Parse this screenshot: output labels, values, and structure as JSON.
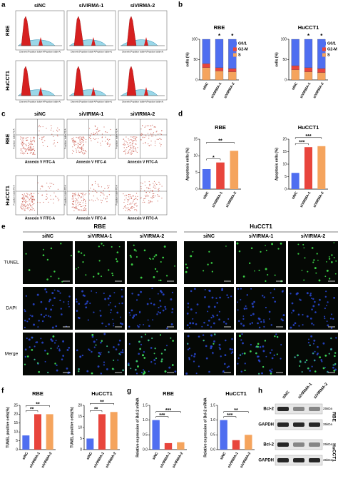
{
  "panel_labels": [
    "a",
    "b",
    "c",
    "d",
    "e",
    "f",
    "g",
    "h"
  ],
  "flow_cycle": {
    "columns": [
      "siNC",
      "siVIRMA-1",
      "siVIRMA-2"
    ],
    "rows": [
      "RBE",
      "HuCCT1"
    ],
    "x_label": "Channels (Propidium Iodide-A/Propidium Iodide-A)"
  },
  "flow_apoptosis": {
    "columns": [
      "siNC",
      "siVIRMA-1",
      "siVIRMA-2"
    ],
    "rows": [
      "RBE",
      "HuCCT1"
    ],
    "x_label": "Annexin V FITC-A",
    "y_label": "Propidium Iodide PE-A"
  },
  "tunel": {
    "groups": [
      "RBE",
      "HuCCT1"
    ],
    "columns": [
      "siNC",
      "siVIRMA-1",
      "siVIRMA-2"
    ],
    "rows": [
      "TUNEL",
      "DAPI",
      "Merge"
    ]
  },
  "western": {
    "samples": [
      "siNC",
      "siVIRMA-1",
      "siVIRMA-2"
    ],
    "groups": [
      "RBE",
      "HuCCT1"
    ],
    "bands": [
      "Bcl-2",
      "GAPDH"
    ],
    "sizes": [
      "25kDa",
      "35kDa"
    ]
  },
  "chart_data": [
    {
      "type": "stacked_bar",
      "title": "RBE",
      "y_label": "cells (%)",
      "categories": [
        "siNC",
        "siVIRMA-1",
        "siVIRMA-2"
      ],
      "series": [
        {
          "name": "S",
          "color": "#f5a45d",
          "values": [
            30,
            22,
            20
          ]
        },
        {
          "name": "G2-M",
          "color": "#e8453c",
          "values": [
            10,
            8,
            8
          ]
        },
        {
          "name": "G0/1",
          "color": "#4f6ef0",
          "values": [
            60,
            70,
            72
          ]
        }
      ],
      "ylim": [
        0,
        100
      ],
      "yticks": [
        0,
        50,
        100
      ],
      "annotations": [
        "*",
        "*"
      ],
      "legend": "upper right"
    },
    {
      "type": "stacked_bar",
      "title": "HuCCT1",
      "y_label": "cells (%)",
      "categories": [
        "siNC",
        "siVIRMA-1",
        "siVIRMA-2"
      ],
      "series": [
        {
          "name": "S",
          "color": "#f5a45d",
          "values": [
            25,
            20,
            18
          ]
        },
        {
          "name": "G2-M",
          "color": "#e8453c",
          "values": [
            10,
            10,
            10
          ]
        },
        {
          "name": "G0/1",
          "color": "#4f6ef0",
          "values": [
            65,
            70,
            72
          ]
        }
      ],
      "ylim": [
        0,
        100
      ],
      "yticks": [
        0,
        50,
        100
      ],
      "annotations": [
        "*",
        "*"
      ],
      "legend": "upper right"
    },
    {
      "type": "bar",
      "title": "RBE",
      "y_label": "Apoptosis cells (%)",
      "categories": [
        "siNC",
        "siVIRMA-1",
        "siVIRMA-2"
      ],
      "values": [
        6,
        8,
        11.5
      ],
      "colors": [
        "#4f6ef0",
        "#e8453c",
        "#f5a45d"
      ],
      "ylim": [
        0,
        15
      ],
      "yticks": [
        0,
        5,
        10,
        15
      ],
      "annotations": [
        "*",
        "**"
      ]
    },
    {
      "type": "bar",
      "title": "HuCCT1",
      "y_label": "Apoptosis cells (%)",
      "categories": [
        "siNC",
        "siVIRMA-1",
        "siVIRMA-2"
      ],
      "values": [
        6.5,
        16.8,
        17.2
      ],
      "colors": [
        "#4f6ef0",
        "#e8453c",
        "#f5a45d"
      ],
      "ylim": [
        0,
        20
      ],
      "yticks": [
        0,
        5,
        10,
        15,
        20
      ],
      "annotations": [
        "***",
        "***"
      ]
    },
    {
      "type": "bar",
      "title": "RBE",
      "y_label": "TUNEL positive cells(%)",
      "categories": [
        "siNC",
        "siVIRMA-1",
        "siVIRMA-2"
      ],
      "values": [
        8,
        20,
        20
      ],
      "colors": [
        "#4f6ef0",
        "#e8453c",
        "#f5a45d"
      ],
      "ylim": [
        0,
        25
      ],
      "yticks": [
        0,
        5,
        10,
        15,
        20,
        25
      ],
      "annotations": [
        "**",
        "**"
      ]
    },
    {
      "type": "bar",
      "title": "HuCCT1",
      "y_label": "TUNEL positive cells(%)",
      "categories": [
        "siNC",
        "siVIRMA-1",
        "siVIRMA-2"
      ],
      "values": [
        5,
        16,
        17
      ],
      "colors": [
        "#4f6ef0",
        "#e8453c",
        "#f5a45d"
      ],
      "ylim": [
        0,
        20
      ],
      "yticks": [
        0,
        5,
        10,
        15,
        20
      ],
      "annotations": [
        "**",
        "**"
      ]
    },
    {
      "type": "bar",
      "title": "RBE",
      "y_label": "Relative expression of Bcl-2 mRNA",
      "categories": [
        "siNC",
        "siVIRMA-1",
        "siVIRMA-2"
      ],
      "values": [
        1.0,
        0.22,
        0.25
      ],
      "colors": [
        "#4f6ef0",
        "#e8453c",
        "#f5a45d"
      ],
      "ylim": [
        0,
        1.5
      ],
      "yticks": [
        {
          "value": 0,
          "label": "0.0"
        },
        0.5,
        {
          "value": 1,
          "label": "1.0"
        },
        1.5
      ],
      "annotations": [
        "***",
        "***"
      ]
    },
    {
      "type": "bar",
      "title": "HuCCT1",
      "y_label": "Relative expression of Bcl-2 mRNA",
      "categories": [
        "siNC",
        "siVIRMA-1",
        "siVIRMA-2"
      ],
      "values": [
        1.0,
        0.32,
        0.5
      ],
      "colors": [
        "#4f6ef0",
        "#e8453c",
        "#f5a45d"
      ],
      "ylim": [
        0,
        1.5
      ],
      "yticks": [
        {
          "value": 0,
          "label": "0.0"
        },
        0.5,
        {
          "value": 1,
          "label": "1.0"
        },
        1.5
      ],
      "annotations": [
        "***",
        "**"
      ]
    }
  ]
}
